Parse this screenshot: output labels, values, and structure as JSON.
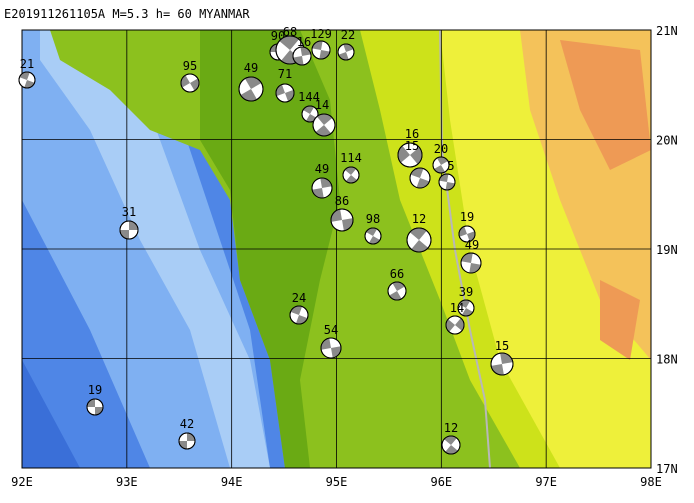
{
  "title": "E201911261105A  M=5.3  h= 60  MYANMAR",
  "x_labels": [
    "92E",
    "93E",
    "94E",
    "95E",
    "96E",
    "97E",
    "98E"
  ],
  "y_labels": [
    "21N",
    "20N",
    "19N",
    "18N",
    "17N"
  ],
  "events": [
    "21",
    "95",
    "49",
    "90",
    "68",
    "16",
    "129",
    "22",
    "71",
    "144",
    "14",
    "16",
    "15",
    "20",
    "5",
    "49",
    "114",
    "86",
    "98",
    "12",
    "19",
    "49",
    "31",
    "66",
    "39",
    "14",
    "24",
    "54",
    "15",
    "19",
    "42",
    "12"
  ]
}
